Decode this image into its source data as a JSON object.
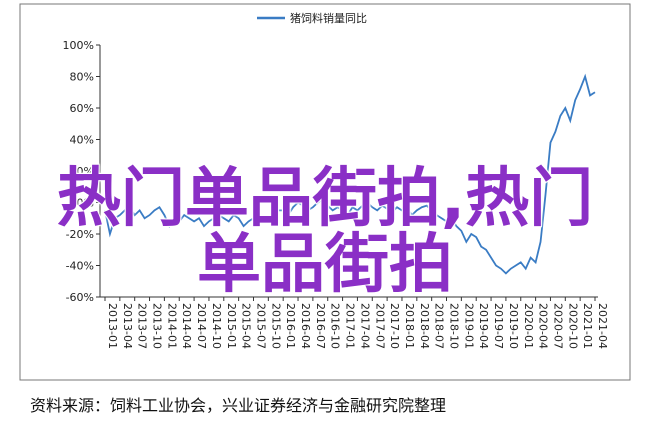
{
  "chart_data": {
    "type": "line",
    "legend_name": "猪饲料销量同比",
    "series": [
      {
        "name": "猪饲料销量同比",
        "color": "#3a7cc4",
        "values": [
          -5,
          -20,
          -10,
          -8,
          -5,
          -3,
          -8,
          -5,
          -10,
          -8,
          -5,
          -3,
          -8,
          -15,
          -10,
          -12,
          -8,
          -10,
          -12,
          -10,
          -15,
          -12,
          -10,
          -8,
          -10,
          -12,
          -8,
          -10,
          -15,
          -12,
          -10,
          -8,
          -10,
          -12,
          -8,
          -5,
          -5,
          -8,
          -3,
          0,
          -2,
          -5,
          -3,
          0,
          2,
          -2,
          -5,
          -3,
          -5,
          -8,
          -3,
          -5,
          -2,
          0,
          -3,
          -5,
          -2,
          -4,
          -6,
          -3,
          -5,
          -3,
          -8,
          -5,
          -3,
          -2,
          -5,
          -8,
          -10,
          -12,
          -10,
          -15,
          -18,
          -25,
          -20,
          -22,
          -28,
          -30,
          -35,
          -40,
          -42,
          -45,
          -42,
          -40,
          -38,
          -42,
          -35,
          -38,
          -25,
          5,
          38,
          45,
          55,
          60,
          52,
          65,
          72,
          80,
          68,
          70
        ]
      }
    ],
    "categories": [
      "2013-01",
      null,
      null,
      "2013-04",
      null,
      null,
      "2013-07",
      null,
      null,
      "2013-10",
      null,
      null,
      "2014-01",
      null,
      null,
      "2014-04",
      null,
      null,
      "2014-07",
      null,
      null,
      "2014-10",
      null,
      null,
      "2015-01",
      null,
      null,
      "2015-04",
      null,
      null,
      "2015-07",
      null,
      null,
      "2015-10",
      null,
      null,
      "2016-01",
      null,
      null,
      "2016-04",
      null,
      null,
      "2016-07",
      null,
      null,
      "2016-10",
      null,
      null,
      "2017-01",
      null,
      null,
      "2017-04",
      null,
      null,
      "2017-07",
      null,
      null,
      "2017-10",
      null,
      null,
      "2018-01",
      null,
      null,
      "2018-04",
      null,
      null,
      "2018-07",
      null,
      null,
      "2018-10",
      null,
      null,
      "2019-01",
      null,
      null,
      "2019-04",
      null,
      null,
      "2019-07",
      null,
      null,
      "2019-10",
      null,
      null,
      "2020-01",
      null,
      null,
      "2020-04",
      null,
      null,
      "2020-07",
      null,
      null,
      "2020-10",
      null,
      null,
      "2021-01",
      null,
      null,
      "2021-04"
    ],
    "ylim": [
      -60,
      100
    ],
    "yticks": [
      {
        "value": -60,
        "label": "-60%"
      },
      {
        "value": -40,
        "label": "-40%"
      },
      {
        "value": -20,
        "label": "-20%"
      },
      {
        "value": 0,
        "label": "0%"
      },
      {
        "value": 20,
        "label": "20%"
      },
      {
        "value": 40,
        "label": "40%"
      },
      {
        "value": 60,
        "label": "60%"
      },
      {
        "value": 80,
        "label": "80%"
      },
      {
        "value": 100,
        "label": "100%"
      }
    ]
  },
  "overlay_text": "热门单品街拍,热门单品街拍",
  "source": "资料来源：饲料工业协会，兴业证券经济与金融研究院整理"
}
